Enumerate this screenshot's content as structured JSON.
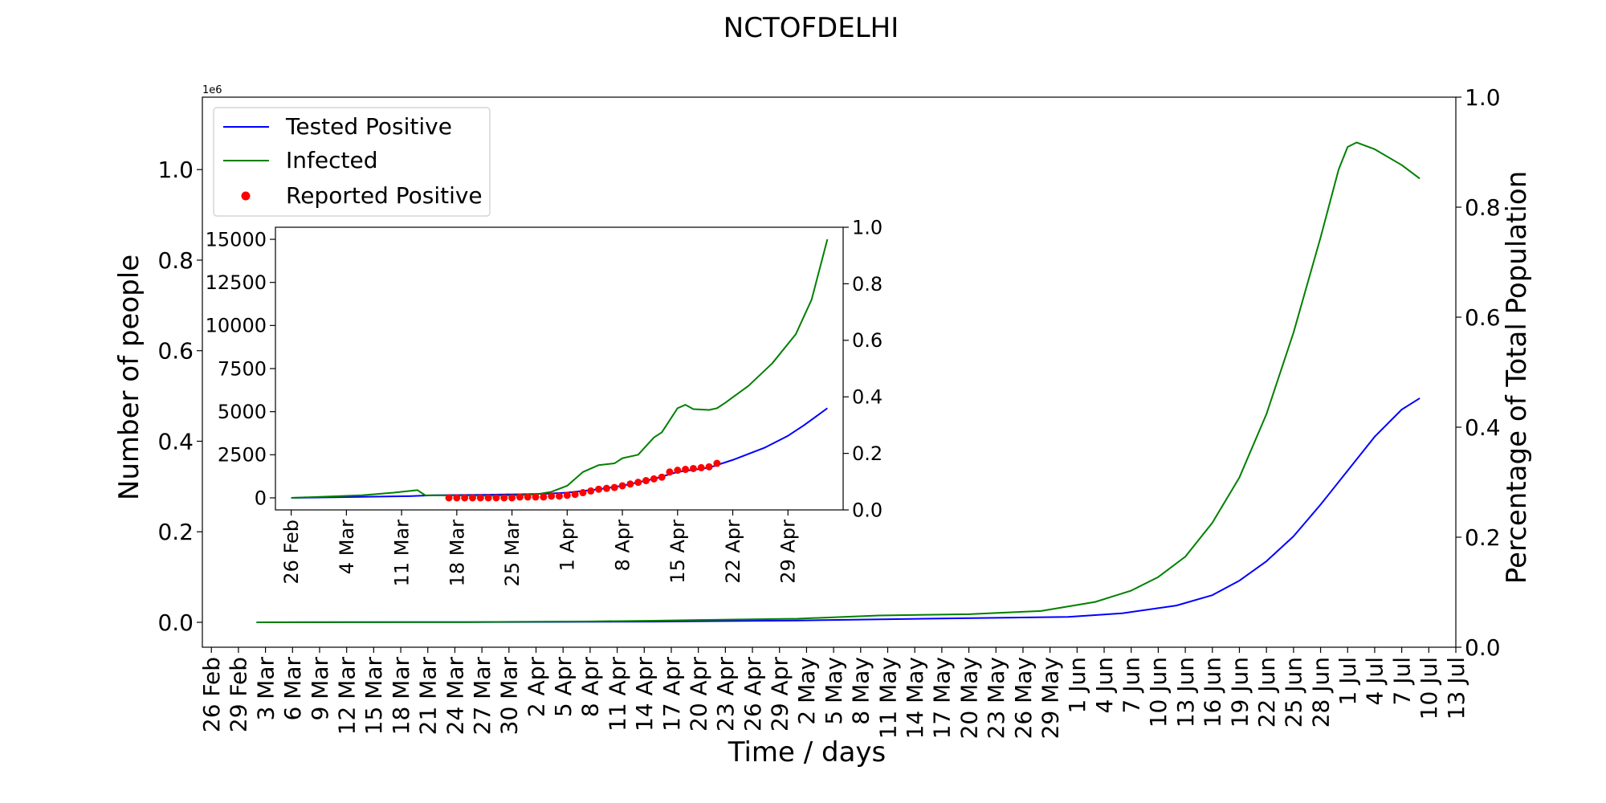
{
  "chart_data": [
    {
      "type": "line",
      "title": "NCTOFDELHI",
      "xlabel": "Time / days",
      "ylabel": "Number of people",
      "y2label": "Percentage of Total Population",
      "y_offset_text": "1e6",
      "x_tick_labels": [
        "26 Feb",
        "29 Feb",
        "3 Mar",
        "6 Mar",
        "9 Mar",
        "12 Mar",
        "15 Mar",
        "18 Mar",
        "21 Mar",
        "24 Mar",
        "27 Mar",
        "30 Mar",
        "2 Apr",
        "5 Apr",
        "8 Apr",
        "11 Apr",
        "14 Apr",
        "17 Apr",
        "20 Apr",
        "23 Apr",
        "26 Apr",
        "29 Apr",
        "2 May",
        "5 May",
        "8 May",
        "11 May",
        "14 May",
        "17 May",
        "20 May",
        "23 May",
        "26 May",
        "29 May",
        "1 Jun",
        "4 Jun",
        "7 Jun",
        "10 Jun",
        "13 Jun",
        "16 Jun",
        "19 Jun",
        "22 Jun",
        "25 Jun",
        "28 Jun",
        "1 Jul",
        "4 Jul",
        "7 Jul",
        "10 Jul",
        "13 Jul"
      ],
      "x_tick_start": "2020-02-26",
      "x_tick_step_days": 3,
      "xlim": [
        "2020-02-25",
        "2020-07-13"
      ],
      "y_tick_labels": [
        "0.0",
        "0.2",
        "0.4",
        "0.6",
        "0.8",
        "1.0"
      ],
      "y_ticks": [
        0,
        200000,
        400000,
        600000,
        800000,
        1000000
      ],
      "ylim": [
        -55000,
        1160000
      ],
      "y2_tick_labels": [
        "0.0",
        "0.2",
        "0.4",
        "0.6",
        "0.8",
        "1.0"
      ],
      "y2lim": [
        0,
        1
      ],
      "legend": {
        "position": "top-left",
        "entries": [
          "Tested Positive",
          "Infected",
          "Reported Positive"
        ]
      },
      "series": [
        {
          "name": "Tested Positive",
          "color": "#0000ff",
          "points": [
            [
              "2020-03-02",
              0
            ],
            [
              "2020-03-25",
              500
            ],
            [
              "2020-04-15",
              1500
            ],
            [
              "2020-05-01",
              4000
            ],
            [
              "2020-05-15",
              8000
            ],
            [
              "2020-05-31",
              12000
            ],
            [
              "2020-06-06",
              20000
            ],
            [
              "2020-06-12",
              37000
            ],
            [
              "2020-06-16",
              60000
            ],
            [
              "2020-06-19",
              92000
            ],
            [
              "2020-06-22",
              135000
            ],
            [
              "2020-06-25",
              190000
            ],
            [
              "2020-06-28",
              260000
            ],
            [
              "2020-07-01",
              335000
            ],
            [
              "2020-07-04",
              410000
            ],
            [
              "2020-07-07",
              470000
            ],
            [
              "2020-07-09",
              495000
            ]
          ]
        },
        {
          "name": "Infected",
          "color": "#008000",
          "points": [
            [
              "2020-03-02",
              0
            ],
            [
              "2020-03-25",
              500
            ],
            [
              "2020-04-08",
              2000
            ],
            [
              "2020-04-15",
              3500
            ],
            [
              "2020-04-20",
              5000
            ],
            [
              "2020-05-01",
              8000
            ],
            [
              "2020-05-10",
              15000
            ],
            [
              "2020-05-20",
              18000
            ],
            [
              "2020-05-28",
              25000
            ],
            [
              "2020-06-03",
              45000
            ],
            [
              "2020-06-07",
              70000
            ],
            [
              "2020-06-10",
              100000
            ],
            [
              "2020-06-13",
              145000
            ],
            [
              "2020-06-16",
              220000
            ],
            [
              "2020-06-19",
              320000
            ],
            [
              "2020-06-22",
              460000
            ],
            [
              "2020-06-25",
              640000
            ],
            [
              "2020-06-28",
              850000
            ],
            [
              "2020-06-30",
              1000000
            ],
            [
              "2020-07-01",
              1050000
            ],
            [
              "2020-07-02",
              1060000
            ],
            [
              "2020-07-04",
              1045000
            ],
            [
              "2020-07-07",
              1010000
            ],
            [
              "2020-07-09",
              980000
            ]
          ]
        }
      ]
    },
    {
      "type": "line",
      "title": "",
      "x_tick_labels": [
        "26 Feb",
        "4 Mar",
        "11 Mar",
        "18 Mar",
        "25 Mar",
        "1 Apr",
        "8 Apr",
        "15 Apr",
        "22 Apr",
        "29 Apr"
      ],
      "x_tick_start": "2020-02-26",
      "x_tick_step_days": 7,
      "xlim": [
        "2020-02-24",
        "2020-05-06"
      ],
      "y_tick_labels": [
        "0",
        "2500",
        "5000",
        "7500",
        "10000",
        "12500",
        "15000"
      ],
      "y_ticks": [
        0,
        2500,
        5000,
        7500,
        10000,
        12500,
        15000
      ],
      "ylim": [
        -700,
        15700
      ],
      "y2_tick_labels": [
        "0.0",
        "0.2",
        "0.4",
        "0.6",
        "0.8",
        "1.0"
      ],
      "y2lim": [
        0,
        1
      ],
      "series": [
        {
          "name": "Tested Positive",
          "color": "#0000ff",
          "points": [
            [
              "2020-02-26",
              0
            ],
            [
              "2020-03-05",
              50
            ],
            [
              "2020-03-12",
              100
            ],
            [
              "2020-03-15",
              150
            ],
            [
              "2020-03-22",
              180
            ],
            [
              "2020-03-29",
              230
            ],
            [
              "2020-04-01",
              300
            ],
            [
              "2020-04-05",
              500
            ],
            [
              "2020-04-08",
              700
            ],
            [
              "2020-04-12",
              1100
            ],
            [
              "2020-04-15",
              1500
            ],
            [
              "2020-04-19",
              1750
            ],
            [
              "2020-04-22",
              2200
            ],
            [
              "2020-04-26",
              2900
            ],
            [
              "2020-04-29",
              3600
            ],
            [
              "2020-05-01",
              4200
            ],
            [
              "2020-05-04",
              5200
            ]
          ]
        },
        {
          "name": "Infected",
          "color": "#008000",
          "points": [
            [
              "2020-02-26",
              0
            ],
            [
              "2020-03-02",
              80
            ],
            [
              "2020-03-06",
              150
            ],
            [
              "2020-03-10",
              300
            ],
            [
              "2020-03-13",
              450
            ],
            [
              "2020-03-14",
              150
            ],
            [
              "2020-03-22",
              120
            ],
            [
              "2020-03-26",
              150
            ],
            [
              "2020-03-28",
              200
            ],
            [
              "2020-03-30",
              350
            ],
            [
              "2020-04-01",
              700
            ],
            [
              "2020-04-03",
              1500
            ],
            [
              "2020-04-05",
              1900
            ],
            [
              "2020-04-07",
              2000
            ],
            [
              "2020-04-08",
              2300
            ],
            [
              "2020-04-10",
              2500
            ],
            [
              "2020-04-12",
              3500
            ],
            [
              "2020-04-13",
              3800
            ],
            [
              "2020-04-15",
              5200
            ],
            [
              "2020-04-16",
              5400
            ],
            [
              "2020-04-17",
              5150
            ],
            [
              "2020-04-19",
              5100
            ],
            [
              "2020-04-20",
              5200
            ],
            [
              "2020-04-21",
              5500
            ],
            [
              "2020-04-24",
              6500
            ],
            [
              "2020-04-27",
              7800
            ],
            [
              "2020-04-30",
              9500
            ],
            [
              "2020-05-02",
              11500
            ],
            [
              "2020-05-04",
              15000
            ]
          ]
        },
        {
          "name": "Reported Positive",
          "type": "scatter",
          "color": "#ff0000",
          "points": [
            [
              "2020-03-17",
              0
            ],
            [
              "2020-03-18",
              0
            ],
            [
              "2020-03-19",
              0
            ],
            [
              "2020-03-20",
              0
            ],
            [
              "2020-03-21",
              0
            ],
            [
              "2020-03-22",
              0
            ],
            [
              "2020-03-23",
              0
            ],
            [
              "2020-03-24",
              0
            ],
            [
              "2020-03-25",
              0
            ],
            [
              "2020-03-26",
              50
            ],
            [
              "2020-03-27",
              50
            ],
            [
              "2020-03-28",
              50
            ],
            [
              "2020-03-29",
              50
            ],
            [
              "2020-03-30",
              100
            ],
            [
              "2020-03-31",
              100
            ],
            [
              "2020-04-01",
              150
            ],
            [
              "2020-04-02",
              200
            ],
            [
              "2020-04-03",
              300
            ],
            [
              "2020-04-04",
              400
            ],
            [
              "2020-04-05",
              500
            ],
            [
              "2020-04-06",
              550
            ],
            [
              "2020-04-07",
              600
            ],
            [
              "2020-04-08",
              700
            ],
            [
              "2020-04-09",
              800
            ],
            [
              "2020-04-10",
              900
            ],
            [
              "2020-04-11",
              1000
            ],
            [
              "2020-04-12",
              1100
            ],
            [
              "2020-04-13",
              1200
            ],
            [
              "2020-04-14",
              1500
            ],
            [
              "2020-04-15",
              1600
            ],
            [
              "2020-04-16",
              1650
            ],
            [
              "2020-04-17",
              1700
            ],
            [
              "2020-04-18",
              1750
            ],
            [
              "2020-04-19",
              1800
            ],
            [
              "2020-04-20",
              2000
            ]
          ]
        }
      ]
    }
  ]
}
